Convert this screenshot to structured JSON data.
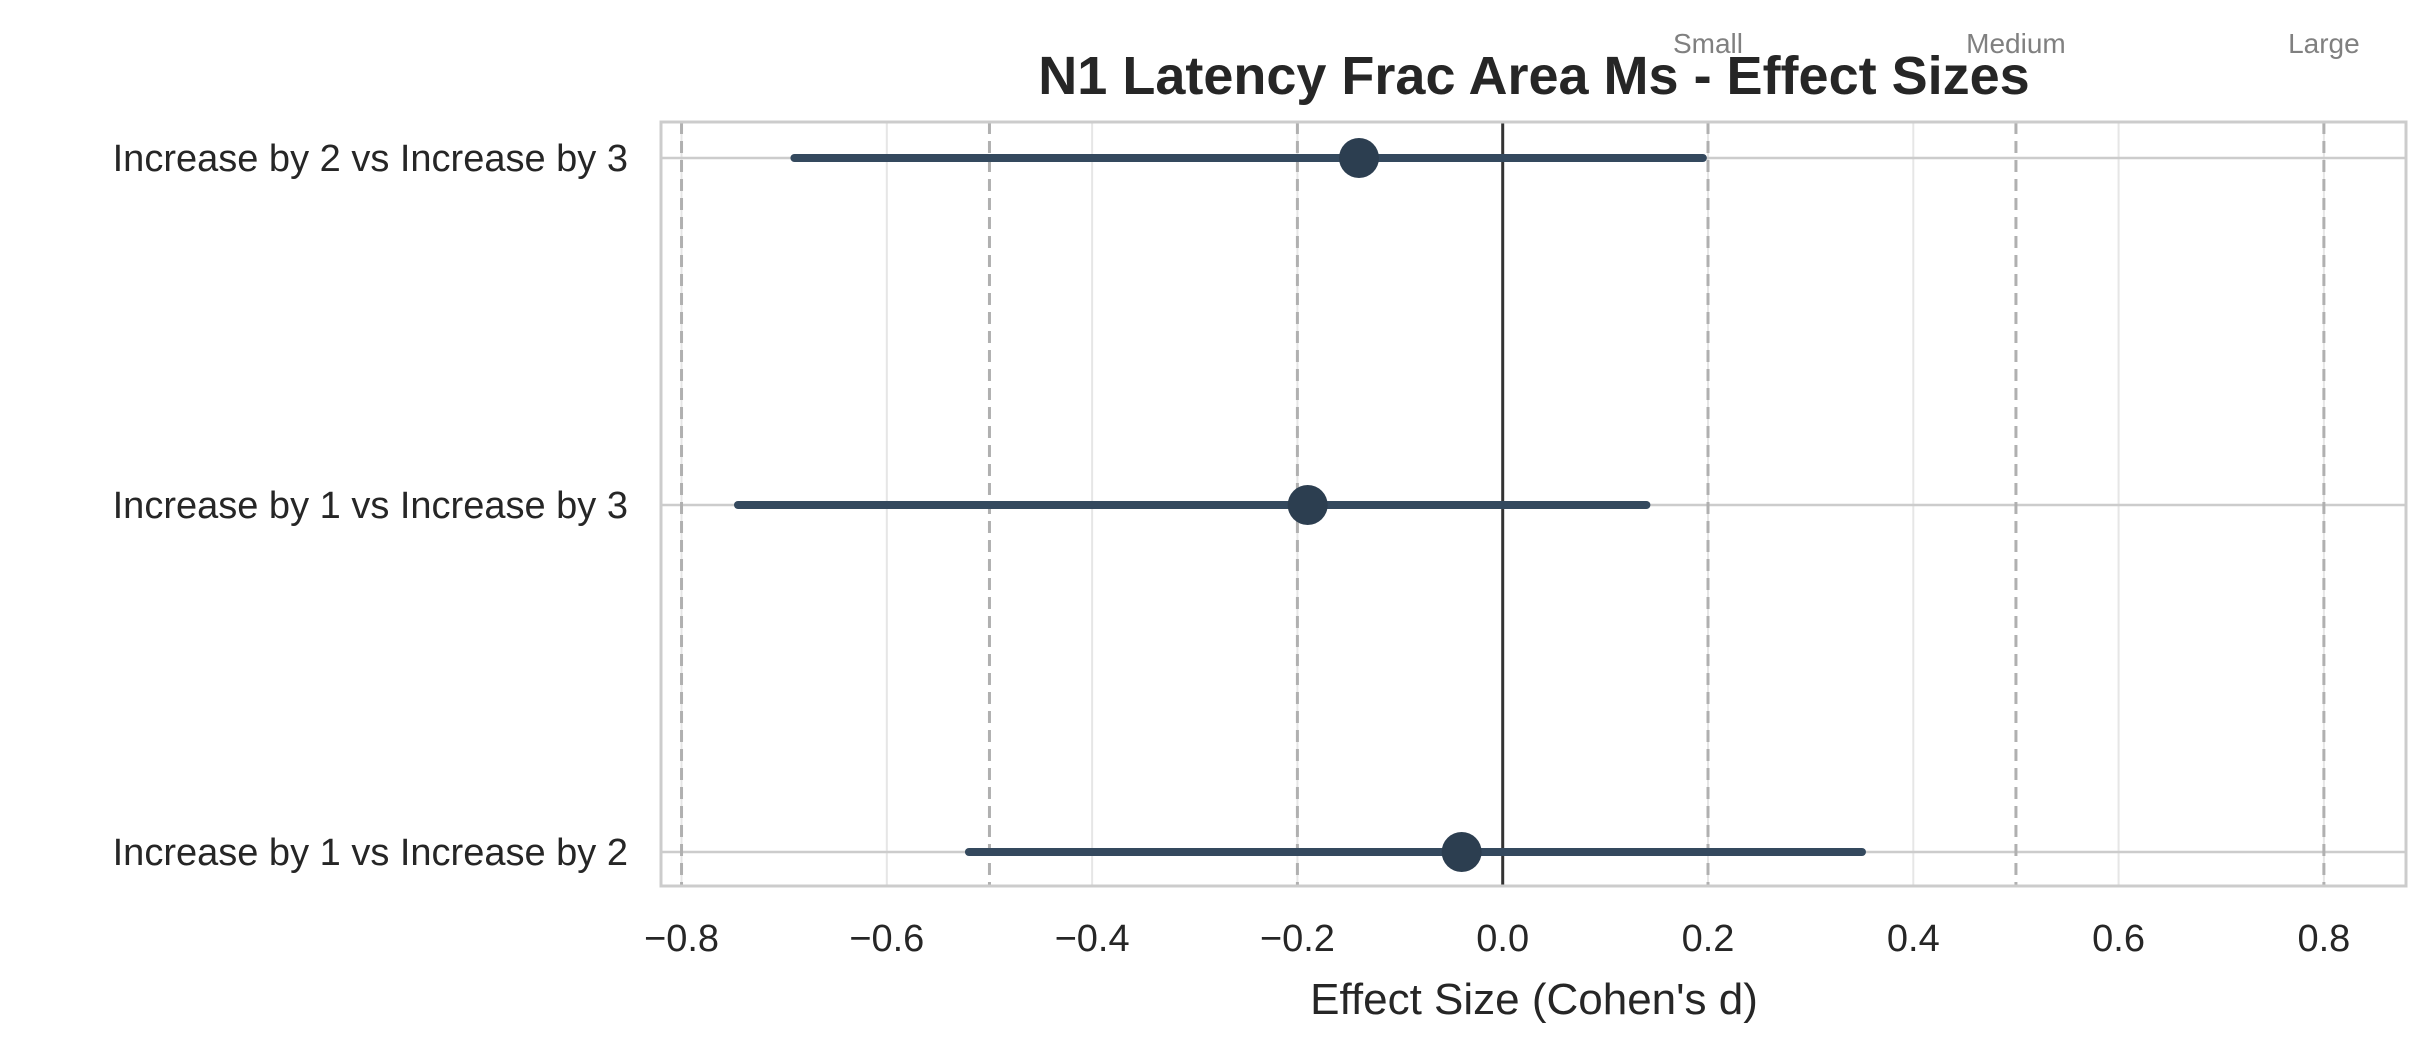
{
  "chart_data": {
    "type": "forest",
    "title": "N1 Latency Frac Area Ms - Effect Sizes",
    "xlabel": "Effect Size (Cohen's d)",
    "ylabel": "",
    "xlim": [
      -0.82,
      0.88
    ],
    "xticks": [
      -0.8,
      -0.6,
      -0.4,
      -0.2,
      0.0,
      0.2,
      0.4,
      0.6,
      0.8
    ],
    "xtick_labels": [
      "−0.8",
      "−0.6",
      "−0.4",
      "−0.2",
      "0.0",
      "0.2",
      "0.4",
      "0.6",
      "0.8"
    ],
    "grid": true,
    "zero_line": 0.0,
    "thresholds": [
      {
        "value": -0.8,
        "label": ""
      },
      {
        "value": -0.5,
        "label": ""
      },
      {
        "value": -0.2,
        "label": ""
      },
      {
        "value": 0.2,
        "label": "Small"
      },
      {
        "value": 0.5,
        "label": "Medium"
      },
      {
        "value": 0.8,
        "label": "Large"
      }
    ],
    "comparisons": [
      {
        "label": "Increase by 2 vs Increase by 3",
        "d": -0.14,
        "ci_low": -0.69,
        "ci_high": 0.195
      },
      {
        "label": "Increase by 1 vs Increase by 3",
        "d": -0.19,
        "ci_low": -0.745,
        "ci_high": 0.14
      },
      {
        "label": "Increase by 1 vs Increase by 2",
        "d": -0.04,
        "ci_low": -0.52,
        "ci_high": 0.35
      }
    ],
    "colors": {
      "marker": "#2c3e50",
      "line": "#34495e",
      "zero_line": "#333333",
      "threshold": "#b0b0b0",
      "grid": "#e6e6e6",
      "frame": "#cccccc"
    }
  }
}
